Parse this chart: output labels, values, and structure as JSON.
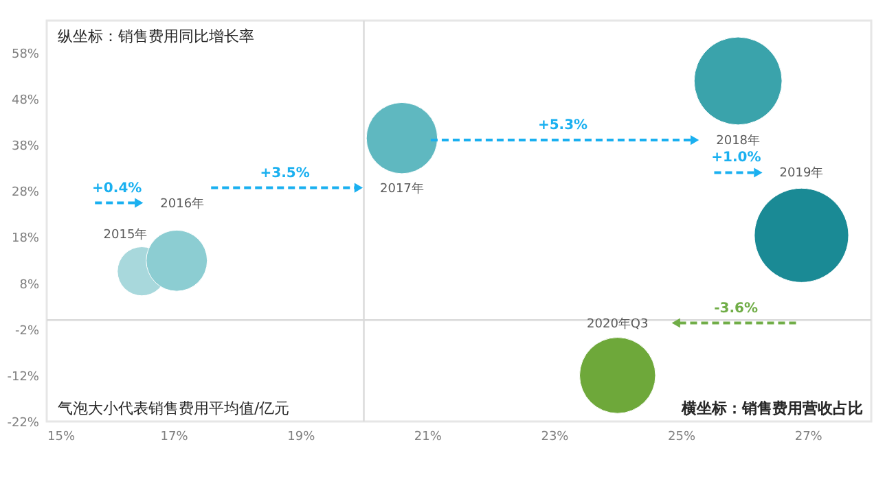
{
  "chart_data": {
    "type": "bubble",
    "xlabel": "横坐标：销售费用营收占比",
    "ylabel": "纵坐标：销售费用同比增长率",
    "series": [
      {
        "name": "2015年",
        "color": "#a8d8dc",
        "x": [
          16.5
        ],
        "values": [
          10.6
        ],
        "sizes": [
          0.27
        ]
      },
      {
        "name": "2016年",
        "color": "#8ccdd2",
        "x": [
          17.05
        ],
        "values": [
          12.9
        ],
        "sizes": [
          0.42
        ]
      },
      {
        "name": "2017年",
        "color": "#5fb8c0",
        "x": [
          20.6
        ],
        "values": [
          39.5
        ],
        "sizes": [
          0.57
        ]
      },
      {
        "name": "2018年",
        "color": "#3aa3ab",
        "x": [
          25.9
        ],
        "values": [
          51.9
        ],
        "sizes": [
          0.87
        ]
      },
      {
        "name": "2019年",
        "color": "#1a8a95",
        "x": [
          26.9
        ],
        "values": [
          18.4
        ],
        "sizes": [
          1
        ]
      },
      {
        "name": "2020年Q3",
        "color": "#6ea83a",
        "x": [
          24.0
        ],
        "values": [
          -12.0
        ],
        "sizes": [
          0.65
        ]
      }
    ],
    "xlim": [
      15,
      28
    ],
    "ylim": [
      -22,
      65
    ],
    "xticks": [
      {
        "value": 15,
        "label": "15%"
      },
      {
        "value": 17,
        "label": "17%"
      },
      {
        "value": 19,
        "label": "19%"
      },
      {
        "value": 21,
        "label": "21%"
      },
      {
        "value": 23,
        "label": "23%"
      },
      {
        "value": 25,
        "label": "25%"
      },
      {
        "value": 27,
        "label": "27%"
      }
    ],
    "yticks": [
      {
        "value": -22,
        "label": "-22%"
      },
      {
        "value": -12,
        "label": "-12%"
      },
      {
        "value": -2,
        "label": "-2%"
      },
      {
        "value": 8,
        "label": "8%"
      },
      {
        "value": 18,
        "label": "18%"
      },
      {
        "value": 28,
        "label": "28%"
      },
      {
        "value": 38,
        "label": "38%"
      },
      {
        "value": 48,
        "label": "48%"
      },
      {
        "value": 58,
        "label": "58%"
      }
    ],
    "ref_lines": [
      {
        "axis": "x",
        "value": 20,
        "color": "#d9d9d9"
      },
      {
        "axis": "y",
        "value": 0,
        "color": "#d9d9d9"
      }
    ],
    "annotations": [
      "气泡大小代表销售费用平均值/亿元",
      "+0.4%",
      "+3.5%",
      "+5.3%",
      "+1.0%",
      "-3.6%"
    ],
    "grid": false,
    "legend": false
  }
}
